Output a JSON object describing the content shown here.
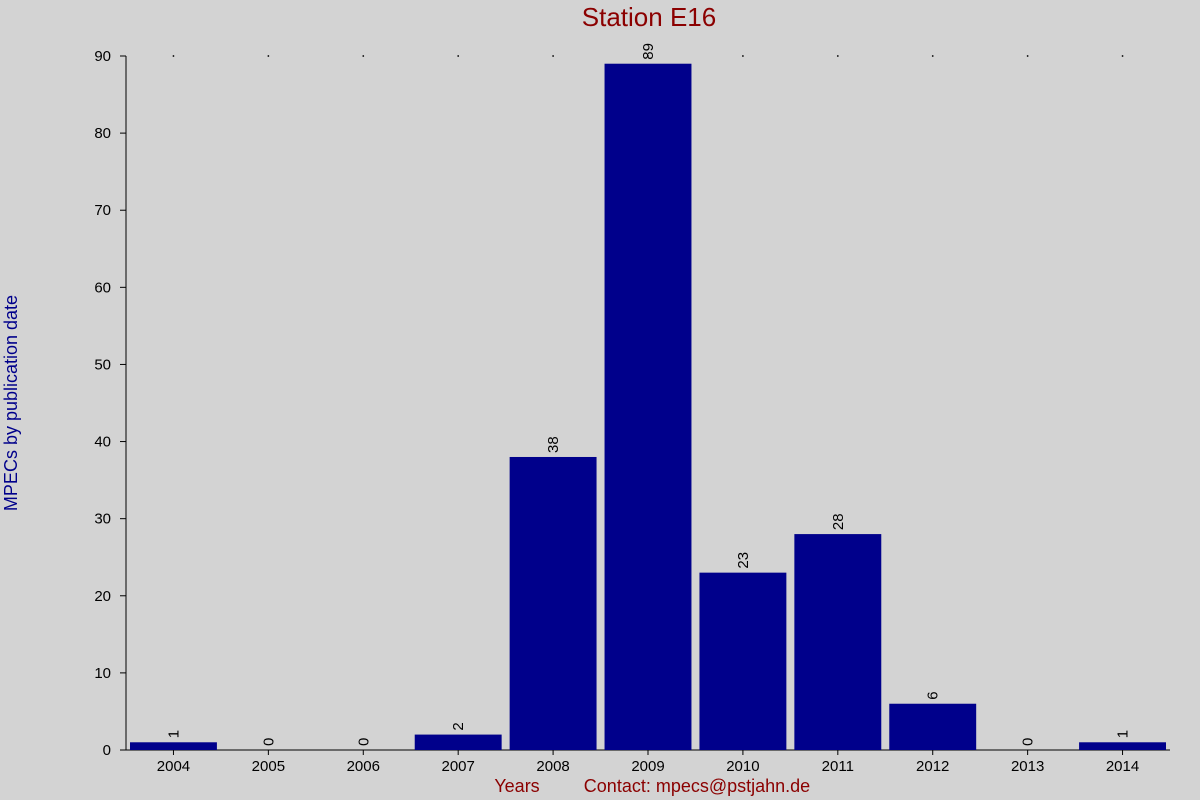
{
  "chart_data": {
    "type": "bar",
    "title": "Station E16",
    "xlabel": "Years",
    "ylabel": "MPECs by publication date",
    "footer": "Contact: mpecs@pstjahn.de",
    "categories": [
      "2004",
      "2005",
      "2006",
      "2007",
      "2008",
      "2009",
      "2010",
      "2011",
      "2012",
      "2013",
      "2014"
    ],
    "values": [
      1,
      0,
      0,
      2,
      38,
      89,
      23,
      28,
      6,
      0,
      1
    ],
    "ylim": [
      0,
      90
    ],
    "yticks": [
      0,
      10,
      20,
      30,
      40,
      50,
      60,
      70,
      80,
      90
    ],
    "grid": false,
    "bar_color": "#00008b",
    "background": "#d3d3d3",
    "title_color": "#8b0000",
    "ylabel_color": "#00008b",
    "value_labels": true
  }
}
